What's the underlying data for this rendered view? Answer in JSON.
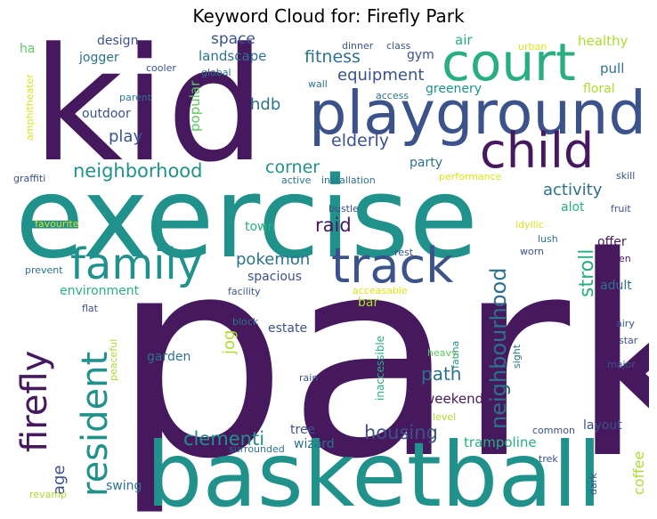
{
  "title": "Keyword Cloud for: Firefly Park",
  "palette": {
    "dark_purple": "#46195e",
    "indigo": "#3b528b",
    "blue": "#2c728e",
    "teal": "#21918c",
    "teal_green": "#28ae80",
    "green": "#5ec962",
    "lime": "#addc30",
    "yellow": "#dde318"
  },
  "words": {
    "park": "park",
    "exercise": "exercise",
    "kid": "kid",
    "basketball": "basketball",
    "playground": "playground",
    "court": "court",
    "child": "child",
    "track": "track",
    "family": "family",
    "resident": "resident",
    "firefly": "firefly",
    "neighbourhood": "neighbourhood",
    "neighborhood": "neighborhood",
    "stroll": "stroll",
    "fitness": "fitness",
    "equipment": "equipment",
    "elderly": "elderly",
    "corner": "corner",
    "activity": "activity",
    "pokemon": "pokemon",
    "raid": "raid",
    "housing": "housing",
    "clementi": "clementi",
    "path": "path",
    "age": "age",
    "space": "space",
    "landscape": "landscape",
    "design": "design",
    "jogger": "jogger",
    "hdb": "hdb",
    "play": "play",
    "outdoor": "outdoor",
    "popular": "popular",
    "gym": "gym",
    "air": "air",
    "healthy": "healthy",
    "pull": "pull",
    "greenery": "greenery",
    "floral": "floral",
    "party": "party",
    "alot": "alot",
    "offer": "offer",
    "adult": "adult",
    "layout": "layout",
    "trampoline": "trampoline",
    "coffee": "coffee",
    "swing": "swing",
    "wizard": "wizard",
    "tree": "tree",
    "weekend": "weekend",
    "jog": "jog",
    "garden": "garden",
    "estate": "estate",
    "bar": "bar",
    "environment": "environment",
    "spacious": "spacious",
    "town": "town",
    "ha": "ha",
    "amphitheater": "amphitheater",
    "cooler": "cooler",
    "global": "global",
    "parent": "parent",
    "dinner": "dinner",
    "class": "class",
    "urban": "urban",
    "wall": "wall",
    "access": "access",
    "graffiti": "graffiti",
    "active": "active",
    "installation": "installation",
    "performance": "performance",
    "skill": "skill",
    "fruit": "fruit",
    "favourite": "favourite",
    "bustle": "bustle",
    "idyllic": "idyllic",
    "lush": "lush",
    "rest": "rest",
    "worn": "worn",
    "hidden": "hidden",
    "prevent": "prevent",
    "facility": "facility",
    "acceasable": "acceasable",
    "flat": "flat",
    "block": "block",
    "peaceful": "peaceful",
    "inaccessible": "inaccessible",
    "airy": "airy",
    "star": "star",
    "sight": "sight",
    "heavy": "heavy",
    "fauna": "fauna",
    "major": "major",
    "rain": "rain",
    "level": "level",
    "common": "common",
    "surrounded": "surrounded",
    "trek": "trek",
    "dark": "dark",
    "revamp": "revamp"
  }
}
